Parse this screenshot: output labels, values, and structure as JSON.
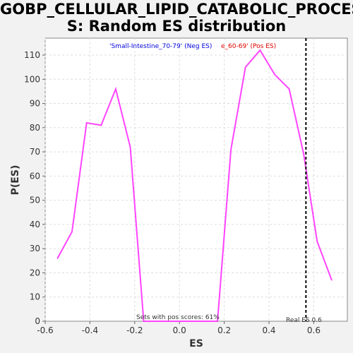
{
  "chart_data": {
    "type": "line",
    "title_line1": "GOBP_CELLULAR_LIPID_CATABOLIC_PROCES",
    "title_line2": "S: Random ES distribution",
    "xlabel": "ES",
    "ylabel": "P(ES)",
    "xlim": [
      -0.6,
      0.75
    ],
    "ylim": [
      0,
      117
    ],
    "x_ticks": [
      -0.6,
      -0.4,
      -0.2,
      0.0,
      0.2,
      0.4,
      0.6
    ],
    "x_tick_labels": [
      "-0.6",
      "-0.4",
      "-0.2",
      "0.0",
      "0.2",
      "0.4",
      "0.6"
    ],
    "y_ticks": [
      0,
      10,
      20,
      30,
      40,
      50,
      60,
      70,
      80,
      90,
      100,
      110
    ],
    "grid": true,
    "series": [
      {
        "color": "#ff44ff",
        "x": [
          -0.545,
          -0.48,
          -0.415,
          -0.35,
          -0.285,
          -0.22,
          -0.16,
          0.17,
          0.23,
          0.295,
          0.36,
          0.425,
          0.49,
          0.555,
          0.615,
          0.68
        ],
        "y": [
          26,
          37,
          82,
          81,
          96,
          72,
          0,
          0,
          71,
          105,
          112,
          102,
          96,
          69,
          33,
          17
        ]
      }
    ],
    "real_es": 0.565,
    "real_es_label": "Real ES 0.6",
    "pos_scores_label": "Sets with pos scores: 61%",
    "legend_neg": "'Small-Intestine_70-79' (Neg ES)",
    "legend_pos": "e_60-69' (Pos ES)",
    "colors": {
      "neg": "#0000dd",
      "pos": "#dd0000",
      "line": "#ff44ff"
    }
  }
}
